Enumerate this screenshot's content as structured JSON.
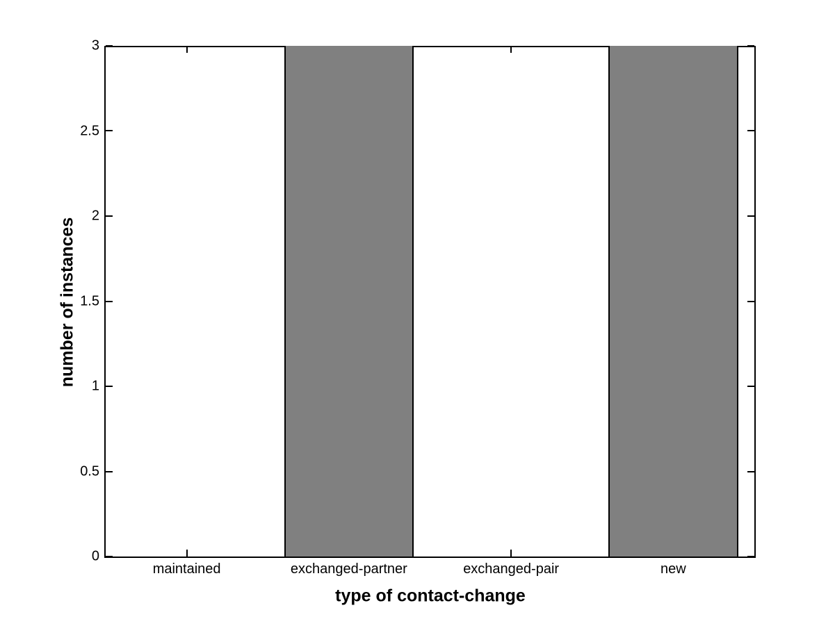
{
  "figure": {
    "background": "#ffffff",
    "axis_color": "#000000"
  },
  "chart_data": {
    "type": "bar",
    "categories": [
      "maintained",
      "exchanged-partner",
      "exchanged-pair",
      "new"
    ],
    "values": [
      0,
      3,
      0,
      3
    ],
    "title": "",
    "xlabel": "type of contact-change",
    "ylabel": "number of instances",
    "ylim": [
      0,
      3
    ],
    "yticks": [
      0,
      0.5,
      1,
      1.5,
      2,
      2.5,
      3
    ],
    "xlim": [
      0.5,
      4.5
    ],
    "bar_width_fraction": 0.8,
    "bar_fill": "#808080",
    "bar_edge": "#000000",
    "grid": false,
    "legend": null
  }
}
